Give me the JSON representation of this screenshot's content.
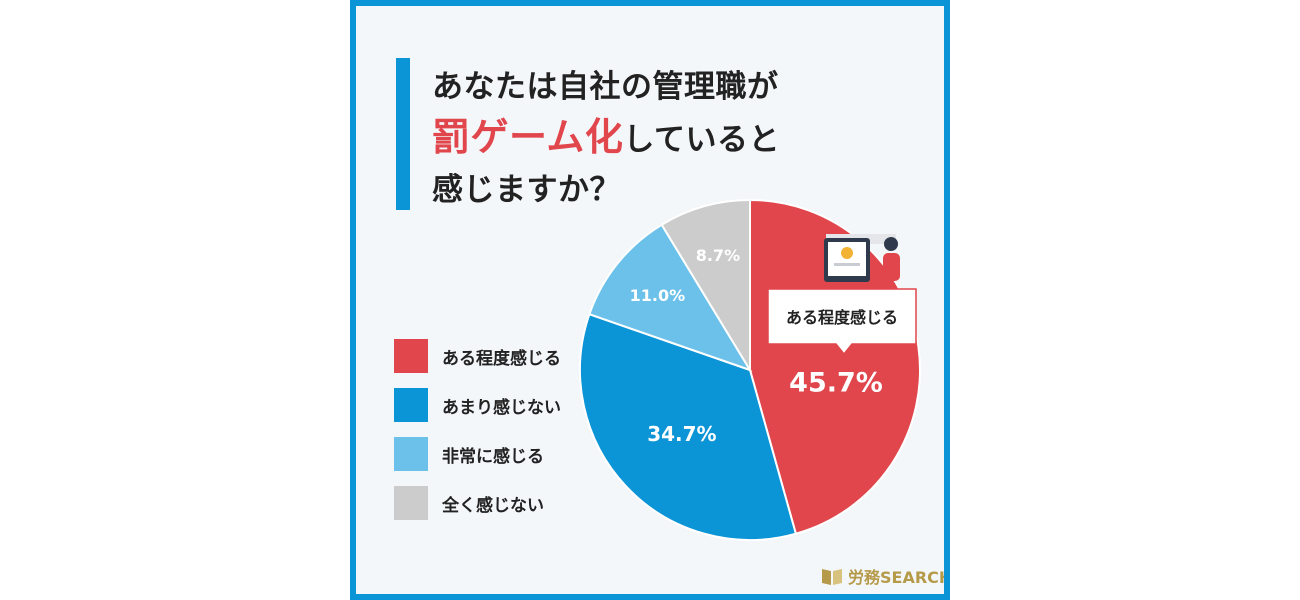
{
  "title": {
    "line1": "あなたは自社の管理職が",
    "line2_highlight": "罰ゲーム化",
    "line2_rest": "していると",
    "line3": "感じますか？"
  },
  "colors": {
    "frame": "#0b94d6",
    "accent": "#e0464b",
    "brand_gold": "#b59a4a"
  },
  "callout": "ある程度感じる",
  "brand": {
    "text": "労務SEARCH",
    "icon": "book-logo-icon"
  },
  "chart_data": {
    "type": "pie",
    "title": "あなたは自社の管理職が罰ゲーム化していると感じますか？",
    "legend_position": "left",
    "slices": [
      {
        "label": "ある程度感じる",
        "value": 45.7,
        "display": "45.7%",
        "color": "#e0464b"
      },
      {
        "label": "あまり感じない",
        "value": 34.7,
        "display": "34.7%",
        "color": "#0b94d6"
      },
      {
        "label": "非常に感じる",
        "value": 11.0,
        "display": "11.0%",
        "color": "#6cc1ea"
      },
      {
        "label": "全く感じない",
        "value": 8.7,
        "display": "8.7%",
        "color": "#cccccc"
      }
    ]
  }
}
